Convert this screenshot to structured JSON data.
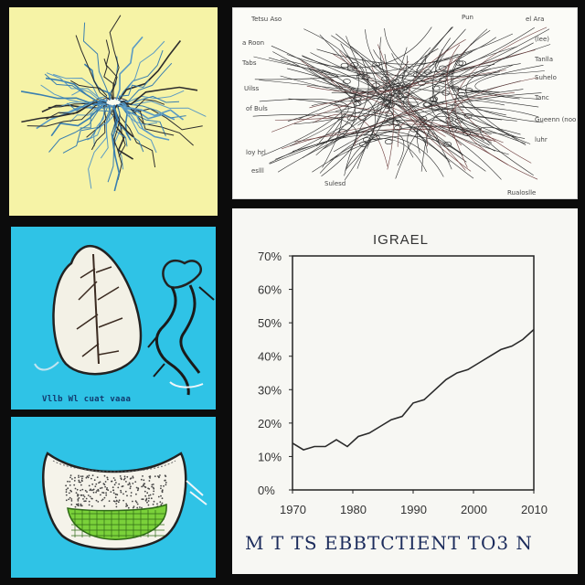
{
  "top_right_labels": [
    "Pun",
    "Tetsu Aso",
    "el Ara",
    "a Roon",
    "(lee)",
    "Tabs",
    "Tanlla",
    "Suhelo",
    "Uilss",
    "Tanc",
    "of Buls",
    "Gueenn (noo",
    "luhr",
    "loy hrl",
    "eslll",
    "Sulesd",
    "Rualoslle"
  ],
  "middle_left_caption": "Vllb Wl cuat vaaa",
  "chart": {
    "title": "IGRAEL",
    "y_ticks": [
      "70%",
      "60%",
      "50%",
      "40%",
      "30%",
      "20%",
      "10%",
      "0%"
    ],
    "x_ticks": [
      "1970",
      "1980",
      "1990",
      "2000",
      "2010"
    ],
    "footer": "M T TS EBBTCTIENT TO3 N"
  },
  "chart_data": {
    "type": "line",
    "title": "IGRAEL",
    "xlabel": "",
    "ylabel": "",
    "x": [
      1970,
      1972,
      1974,
      1976,
      1978,
      1980,
      1982,
      1984,
      1986,
      1988,
      1990,
      1992,
      1994,
      1996,
      1998,
      2000,
      2002,
      2004,
      2006,
      2008,
      2010,
      2012,
      2014
    ],
    "series": [
      {
        "values": [
          14,
          12,
          13,
          13,
          15,
          13,
          16,
          17,
          19,
          21,
          22,
          26,
          27,
          30,
          33,
          35,
          36,
          38,
          40,
          42,
          43,
          45,
          48
        ]
      }
    ],
    "ylim": [
      0,
      70
    ],
    "grid": false
  },
  "colors": {
    "page_background": "#0c0c0c",
    "panel_top_left": "#f6f3a6",
    "panel_cyan": "#2fc3e6",
    "panel_light": "#f7f7f3",
    "line_color": "#2a2a2a",
    "root_blue": "#3a7fb0",
    "leaf_green": "#7ad13a"
  },
  "icons": [
    "root-system-illustration",
    "network-illustration",
    "leaf-illustration",
    "branch-illustration",
    "cross-section-illustration"
  ]
}
